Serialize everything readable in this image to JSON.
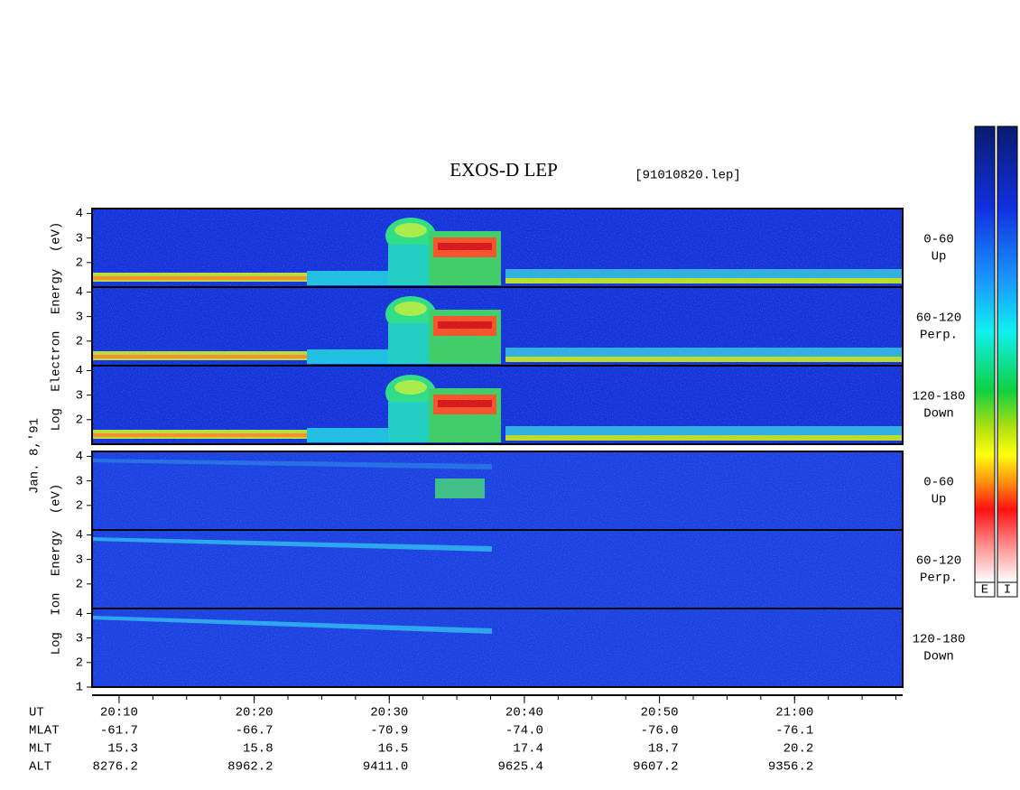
{
  "chart_data": {
    "type": "spectrogram",
    "title": "EXOS-D LEP",
    "file": "[91010820.lep]",
    "date_label": "Jan. 8,'91",
    "ylim": [
      1,
      4.2
    ],
    "xlim": [
      "20:08",
      "21:08"
    ],
    "xticks": [
      "20:10",
      "20:20",
      "20:30",
      "20:40",
      "20:50",
      "21:00"
    ],
    "groups": [
      {
        "label": "Log Electron Energy (eV)",
        "panels": [
          {
            "angle": "0-60",
            "direction": "Up",
            "yticks": [
              2,
              3,
              4
            ]
          },
          {
            "angle": "60-120",
            "direction": "Perp.",
            "yticks": [
              2,
              3,
              4
            ]
          },
          {
            "angle": "120-180",
            "direction": "Down",
            "yticks": [
              2,
              3,
              4
            ]
          }
        ]
      },
      {
        "label": "Log Ion Energy (eV)",
        "panels": [
          {
            "angle": "0-60",
            "direction": "Up",
            "yticks": [
              2,
              3,
              4
            ]
          },
          {
            "angle": "60-120",
            "direction": "Perp.",
            "yticks": [
              2,
              3,
              4
            ]
          },
          {
            "angle": "120-180",
            "direction": "Down",
            "yticks": [
              1,
              2,
              3,
              4
            ]
          }
        ]
      }
    ],
    "time_label": "UT",
    "orbit_rows": [
      {
        "name": "MLAT",
        "values": [
          "-61.7",
          "-66.7",
          "-70.9",
          "-74.0",
          "-76.0",
          "-76.1"
        ]
      },
      {
        "name": "MLT",
        "values": [
          "15.3",
          "15.8",
          "16.5",
          "17.4",
          "18.7",
          "20.2"
        ]
      },
      {
        "name": "ALT",
        "values": [
          "8276.2",
          "8962.2",
          "9411.0",
          "9625.4",
          "9607.2",
          "9356.2"
        ]
      }
    ],
    "colorbar_labels": [
      "E",
      "I"
    ]
  }
}
